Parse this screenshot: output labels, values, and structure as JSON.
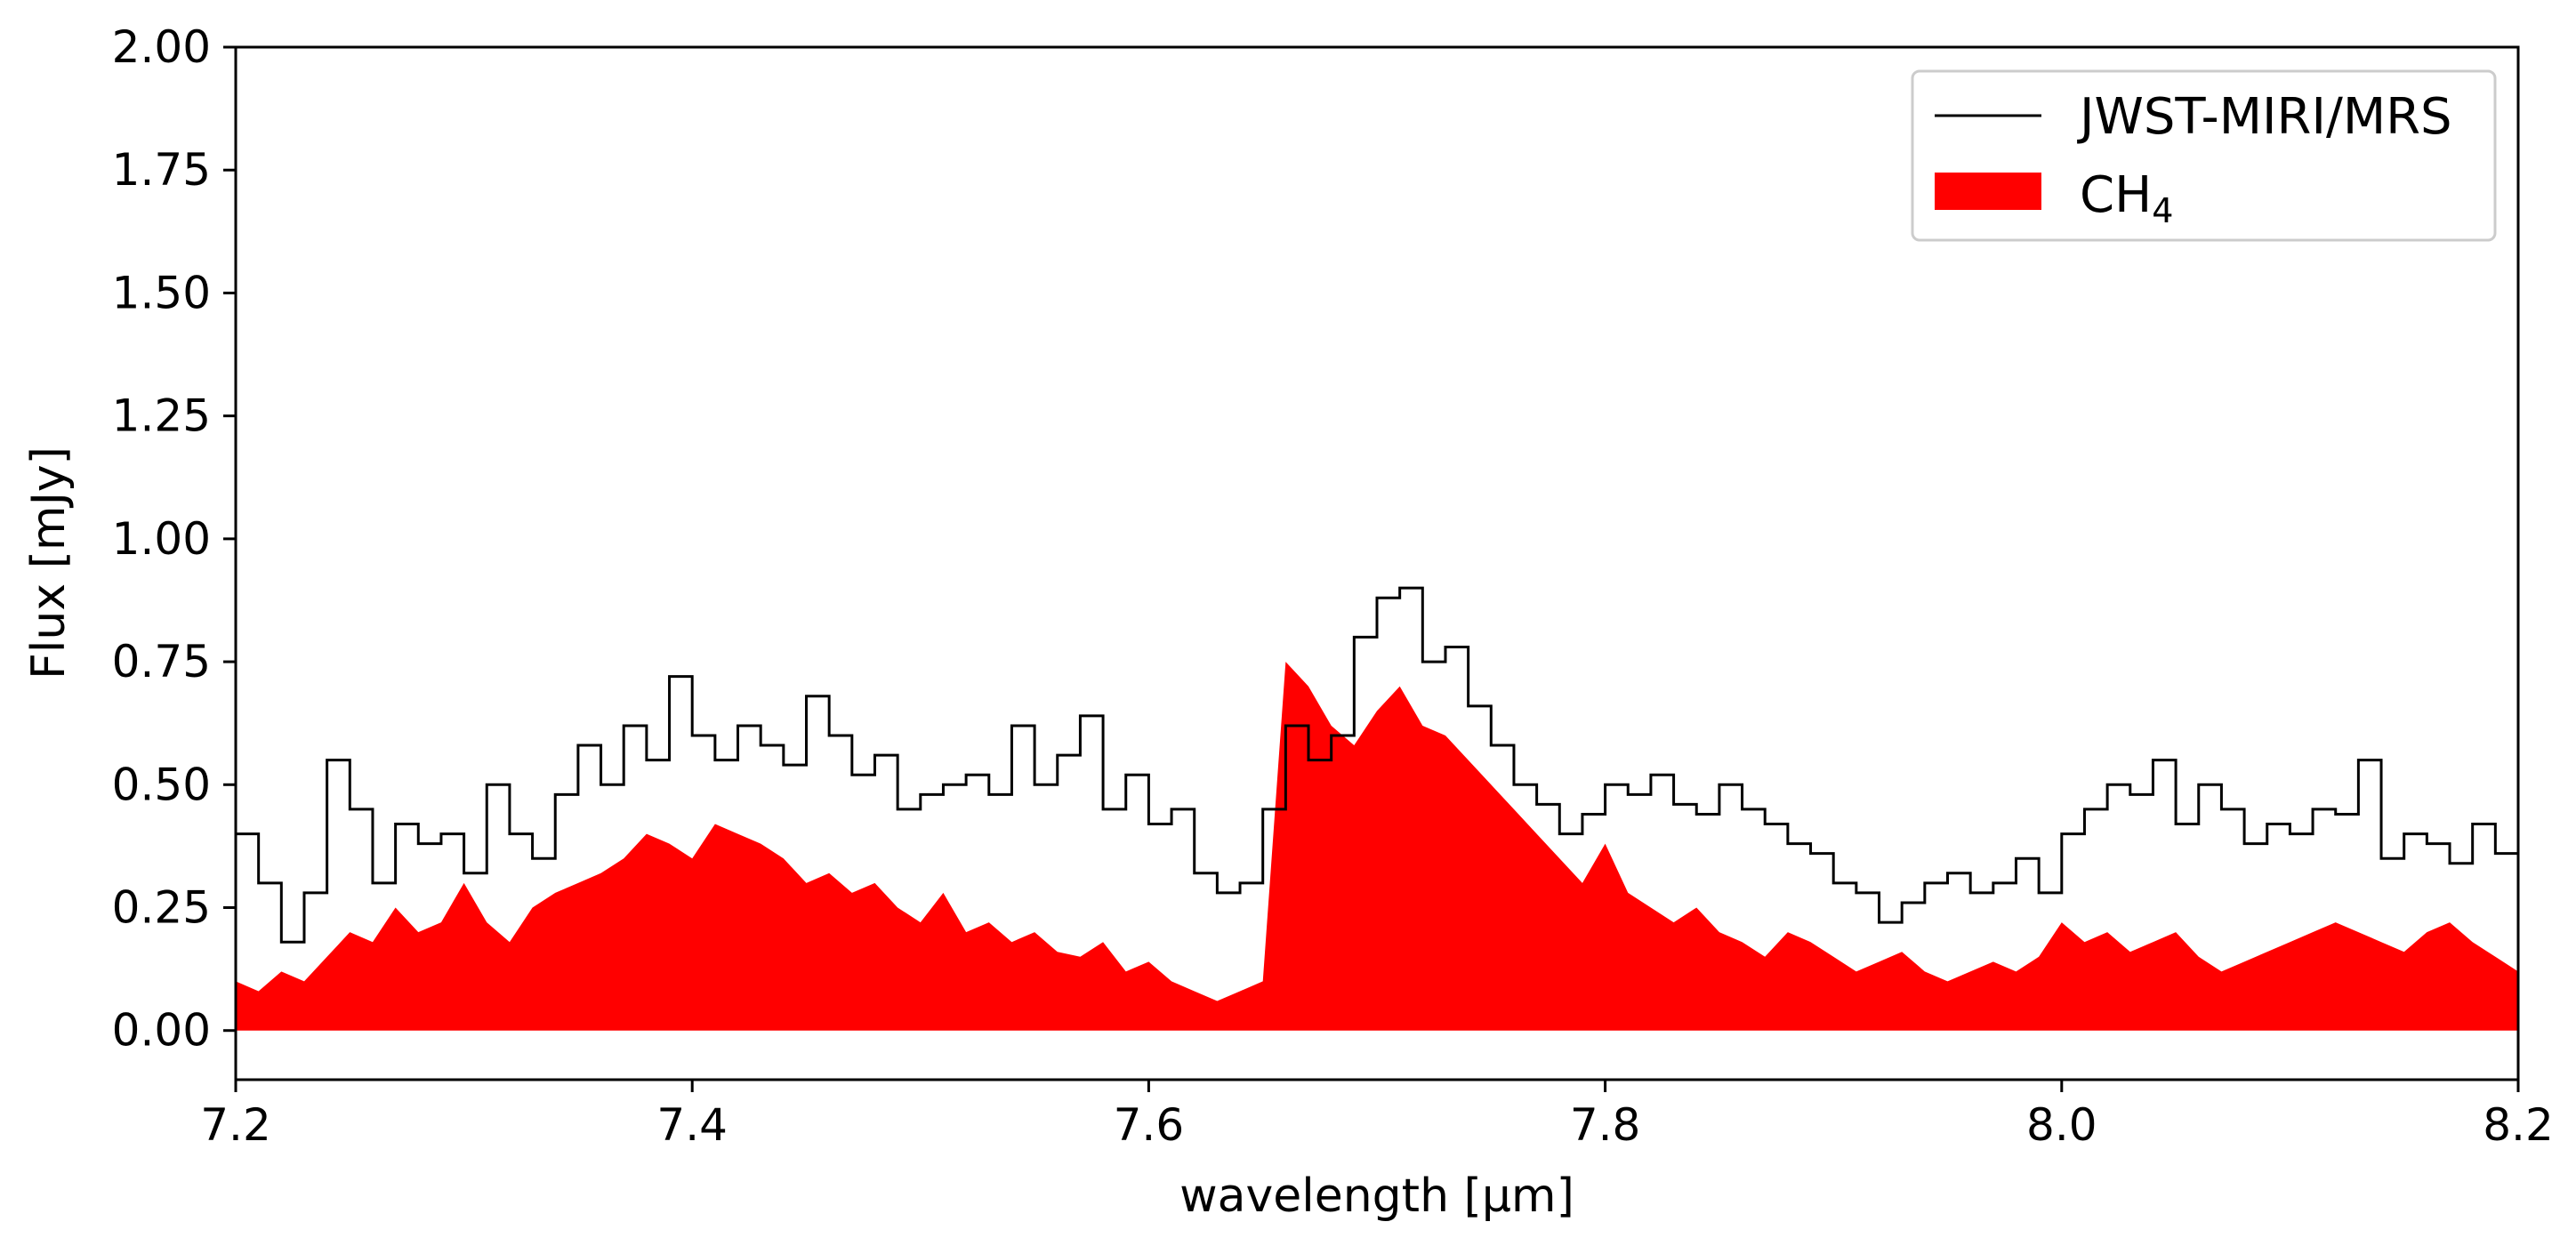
{
  "chart_data": {
    "type": "area",
    "xlabel": "wavelength [μm]",
    "ylabel": "Flux [mJy]",
    "xlim": [
      7.2,
      8.2
    ],
    "ylim": [
      -0.1,
      2.0
    ],
    "x_ticks": [
      "7.2",
      "7.4",
      "7.6",
      "7.8",
      "8.0",
      "8.2"
    ],
    "y_ticks": [
      "0.00",
      "0.25",
      "0.50",
      "0.75",
      "1.00",
      "1.25",
      "1.50",
      "1.75",
      "2.00"
    ],
    "grid": false,
    "legend_position": "top-right",
    "series": [
      {
        "name": "JWST-MIRI/MRS",
        "kind": "step-line",
        "color": "#000000",
        "x": [
          7.2,
          7.21,
          7.22,
          7.23,
          7.24,
          7.25,
          7.26,
          7.27,
          7.28,
          7.29,
          7.3,
          7.31,
          7.32,
          7.33,
          7.34,
          7.35,
          7.36,
          7.37,
          7.38,
          7.39,
          7.4,
          7.41,
          7.42,
          7.43,
          7.44,
          7.45,
          7.46,
          7.47,
          7.48,
          7.49,
          7.5,
          7.51,
          7.52,
          7.53,
          7.54,
          7.55,
          7.56,
          7.57,
          7.58,
          7.59,
          7.6,
          7.61,
          7.62,
          7.63,
          7.64,
          7.65,
          7.66,
          7.67,
          7.68,
          7.69,
          7.7,
          7.71,
          7.72,
          7.73,
          7.74,
          7.75,
          7.76,
          7.77,
          7.78,
          7.79,
          7.8,
          7.81,
          7.82,
          7.83,
          7.84,
          7.85,
          7.86,
          7.87,
          7.88,
          7.89,
          7.9,
          7.91,
          7.92,
          7.93,
          7.94,
          7.95,
          7.96,
          7.97,
          7.98,
          7.99,
          8.0,
          8.01,
          8.02,
          8.03,
          8.04,
          8.05,
          8.06,
          8.07,
          8.08,
          8.09,
          8.1,
          8.11,
          8.12,
          8.13,
          8.14,
          8.15,
          8.16,
          8.17,
          8.18,
          8.19,
          8.2
        ],
        "y": [
          0.4,
          0.3,
          0.18,
          0.28,
          0.55,
          0.45,
          0.3,
          0.42,
          0.38,
          0.4,
          0.32,
          0.5,
          0.4,
          0.35,
          0.48,
          0.58,
          0.5,
          0.62,
          0.55,
          0.72,
          0.6,
          0.55,
          0.62,
          0.58,
          0.54,
          0.68,
          0.6,
          0.52,
          0.56,
          0.45,
          0.48,
          0.5,
          0.52,
          0.48,
          0.62,
          0.5,
          0.56,
          0.64,
          0.45,
          0.52,
          0.42,
          0.45,
          0.32,
          0.28,
          0.3,
          0.45,
          0.62,
          0.55,
          0.6,
          0.8,
          0.88,
          0.9,
          0.75,
          0.78,
          0.66,
          0.58,
          0.5,
          0.46,
          0.4,
          0.44,
          0.5,
          0.48,
          0.52,
          0.46,
          0.44,
          0.5,
          0.45,
          0.42,
          0.38,
          0.36,
          0.3,
          0.28,
          0.22,
          0.26,
          0.3,
          0.32,
          0.28,
          0.3,
          0.35,
          0.28,
          0.4,
          0.45,
          0.5,
          0.48,
          0.55,
          0.42,
          0.5,
          0.45,
          0.38,
          0.42,
          0.4,
          0.45,
          0.44,
          0.55,
          0.35,
          0.4,
          0.38,
          0.34,
          0.42,
          0.36,
          0.35
        ]
      },
      {
        "name": "CH4",
        "kind": "filled-area",
        "color": "#ff0000",
        "x": [
          7.2,
          7.21,
          7.22,
          7.23,
          7.24,
          7.25,
          7.26,
          7.27,
          7.28,
          7.29,
          7.3,
          7.31,
          7.32,
          7.33,
          7.34,
          7.35,
          7.36,
          7.37,
          7.38,
          7.39,
          7.4,
          7.41,
          7.42,
          7.43,
          7.44,
          7.45,
          7.46,
          7.47,
          7.48,
          7.49,
          7.5,
          7.51,
          7.52,
          7.53,
          7.54,
          7.55,
          7.56,
          7.57,
          7.58,
          7.59,
          7.6,
          7.61,
          7.62,
          7.63,
          7.64,
          7.65,
          7.66,
          7.67,
          7.68,
          7.69,
          7.7,
          7.71,
          7.72,
          7.73,
          7.74,
          7.75,
          7.76,
          7.77,
          7.78,
          7.79,
          7.8,
          7.81,
          7.82,
          7.83,
          7.84,
          7.85,
          7.86,
          7.87,
          7.88,
          7.89,
          7.9,
          7.91,
          7.92,
          7.93,
          7.94,
          7.95,
          7.96,
          7.97,
          7.98,
          7.99,
          8.0,
          8.01,
          8.02,
          8.03,
          8.04,
          8.05,
          8.06,
          8.07,
          8.08,
          8.09,
          8.1,
          8.11,
          8.12,
          8.13,
          8.14,
          8.15,
          8.16,
          8.17,
          8.18,
          8.19,
          8.2
        ],
        "y": [
          0.1,
          0.08,
          0.12,
          0.1,
          0.15,
          0.2,
          0.18,
          0.25,
          0.2,
          0.22,
          0.3,
          0.22,
          0.18,
          0.25,
          0.28,
          0.3,
          0.32,
          0.35,
          0.4,
          0.38,
          0.35,
          0.42,
          0.4,
          0.38,
          0.35,
          0.3,
          0.32,
          0.28,
          0.3,
          0.25,
          0.22,
          0.28,
          0.2,
          0.22,
          0.18,
          0.2,
          0.16,
          0.15,
          0.18,
          0.12,
          0.14,
          0.1,
          0.08,
          0.06,
          0.08,
          0.1,
          0.75,
          0.7,
          0.62,
          0.58,
          0.65,
          0.7,
          0.62,
          0.6,
          0.55,
          0.5,
          0.45,
          0.4,
          0.35,
          0.3,
          0.38,
          0.28,
          0.25,
          0.22,
          0.25,
          0.2,
          0.18,
          0.15,
          0.2,
          0.18,
          0.15,
          0.12,
          0.14,
          0.16,
          0.12,
          0.1,
          0.12,
          0.14,
          0.12,
          0.15,
          0.22,
          0.18,
          0.2,
          0.16,
          0.18,
          0.2,
          0.15,
          0.12,
          0.14,
          0.16,
          0.18,
          0.2,
          0.22,
          0.2,
          0.18,
          0.16,
          0.2,
          0.22,
          0.18,
          0.15,
          0.12
        ]
      }
    ],
    "legend": [
      {
        "label_main": "JWST-MIRI/MRS",
        "label_sub": "",
        "marker": "line",
        "color": "#000000"
      },
      {
        "label_main": "CH",
        "label_sub": "4",
        "marker": "patch",
        "color": "#ff0000"
      }
    ]
  }
}
